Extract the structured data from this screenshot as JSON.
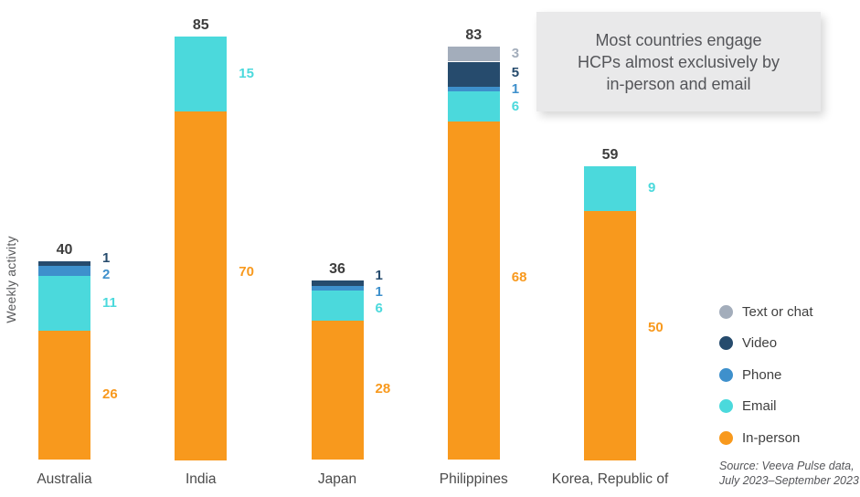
{
  "y_axis_label": "Weekly activity",
  "title_box": {
    "lines": [
      "Most countries engage",
      "HCPs almost exclusively by",
      "in-person and email"
    ]
  },
  "legend": {
    "items": [
      {
        "label": "Text or chat",
        "color": "#A3ADBB"
      },
      {
        "label": "Video",
        "color": "#264B6D"
      },
      {
        "label": "Phone",
        "color": "#3E90CC"
      },
      {
        "label": "Email",
        "color": "#4BD9DC"
      },
      {
        "label": "In-person",
        "color": "#F8991D"
      }
    ]
  },
  "source": {
    "lines": [
      "Source: Veeva Pulse data,",
      "July 2023–September 2023"
    ]
  },
  "colors": {
    "in_person": "#F8991D",
    "email": "#4BD9DC",
    "phone": "#3E90CC",
    "video": "#264B6D",
    "text_or_chat": "#A3ADBB",
    "total_label": "#3D3D3D",
    "country_label": "#4B4B4B",
    "title_bg": "#E9E9EA",
    "title_text": "#545559"
  },
  "chart_data": {
    "type": "bar",
    "stacked": true,
    "title": "Most countries engage HCPs almost exclusively by in-person and email",
    "ylabel": "Weekly activity",
    "xlabel": "",
    "grid": false,
    "legend_position": "right",
    "categories": [
      "Australia",
      "India",
      "Japan",
      "Philippines",
      "Korea, Republic of"
    ],
    "series": [
      {
        "name": "In-person",
        "color": "#F8991D",
        "values": [
          26,
          70,
          28,
          68,
          50
        ]
      },
      {
        "name": "Email",
        "color": "#4BD9DC",
        "values": [
          11,
          15,
          6,
          6,
          9
        ]
      },
      {
        "name": "Phone",
        "color": "#3E90CC",
        "values": [
          2,
          0,
          1,
          1,
          0
        ]
      },
      {
        "name": "Video",
        "color": "#264B6D",
        "values": [
          1,
          0,
          1,
          5,
          0
        ]
      },
      {
        "name": "Text or chat",
        "color": "#A3ADBB",
        "values": [
          0,
          0,
          0,
          3,
          0
        ]
      }
    ],
    "totals": [
      40,
      85,
      36,
      83,
      59
    ],
    "ylim": [
      0,
      85
    ]
  }
}
